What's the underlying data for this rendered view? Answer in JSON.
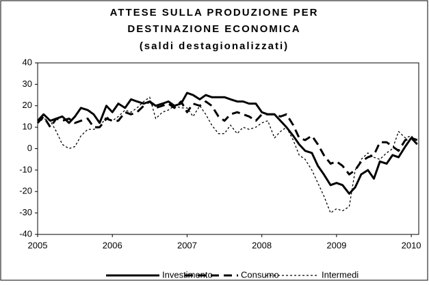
{
  "chart_data": {
    "type": "line",
    "title": [
      "ATTESE SULLA PRODUZIONE PER",
      "DESTINAZIONE ECONOMICA",
      "(saldi destagionalizzati)"
    ],
    "x": [
      2005.0,
      2005.08,
      2005.17,
      2005.25,
      2005.33,
      2005.42,
      2005.5,
      2005.58,
      2005.67,
      2005.75,
      2005.83,
      2005.92,
      2006.0,
      2006.08,
      2006.17,
      2006.25,
      2006.33,
      2006.42,
      2006.5,
      2006.58,
      2006.67,
      2006.75,
      2006.83,
      2006.92,
      2007.0,
      2007.08,
      2007.17,
      2007.25,
      2007.33,
      2007.42,
      2007.5,
      2007.58,
      2007.67,
      2007.75,
      2007.83,
      2007.92,
      2008.0,
      2008.08,
      2008.17,
      2008.25,
      2008.33,
      2008.42,
      2008.5,
      2008.58,
      2008.67,
      2008.75,
      2008.83,
      2008.92,
      2009.0,
      2009.08,
      2009.17,
      2009.25,
      2009.33,
      2009.42,
      2009.5,
      2009.58,
      2009.67,
      2009.75,
      2009.83,
      2009.92,
      2010.0,
      2010.08
    ],
    "series": [
      {
        "name": "Investimento",
        "color": "#000000",
        "line_style": "solid",
        "values": [
          13,
          16,
          13,
          14,
          15,
          12,
          15,
          19,
          18,
          16,
          12,
          20,
          17,
          21,
          19,
          23,
          22,
          21,
          22,
          20,
          21,
          22,
          20,
          21,
          26,
          25,
          23,
          25,
          24,
          24,
          24,
          23,
          22,
          22,
          21,
          21,
          17,
          16,
          16,
          13,
          10,
          6,
          2,
          -1,
          -2,
          -8,
          -12,
          -17,
          -16,
          -17,
          -21,
          -18,
          -12,
          -10,
          -14,
          -6,
          -7,
          -3,
          -4,
          1,
          5,
          4
        ]
      },
      {
        "name": "Consumo",
        "color": "#000000",
        "line_style": "dashed",
        "values": [
          12,
          15,
          10,
          14,
          13,
          14,
          12,
          13,
          14,
          10,
          10,
          14,
          13,
          13,
          17,
          16,
          17,
          20,
          22,
          19,
          20,
          21,
          19,
          22,
          17,
          21,
          20,
          22,
          20,
          15,
          13,
          16,
          17,
          16,
          15,
          13,
          16,
          16,
          16,
          15,
          16,
          11,
          5,
          4,
          6,
          2,
          -3,
          -7,
          -6,
          -8,
          -12,
          -10,
          -6,
          -4,
          -3,
          3,
          3,
          1,
          -1,
          4,
          5,
          2
        ]
      },
      {
        "name": "Intermedi",
        "color": "#000000",
        "line_style": "dotted",
        "values": [
          12,
          14,
          13,
          8,
          2,
          0,
          1,
          6,
          9,
          9,
          10,
          15,
          13,
          15,
          18,
          17,
          19,
          22,
          24,
          14,
          17,
          18,
          20,
          19,
          19,
          15,
          20,
          16,
          11,
          7,
          7,
          11,
          7,
          10,
          9,
          10,
          12,
          13,
          5,
          8,
          10,
          4,
          -3,
          -5,
          -10,
          -16,
          -22,
          -30,
          -28,
          -29,
          -27,
          -10,
          -5,
          -2,
          -4,
          -5,
          -2,
          0,
          8,
          5,
          6,
          3
        ]
      }
    ],
    "xlim": [
      2005,
      2010.1
    ],
    "xticks": [
      2005,
      2006,
      2007,
      2008,
      2009,
      2010
    ],
    "ylim": [
      -40,
      40
    ],
    "yticks": [
      -40,
      -30,
      -20,
      -10,
      0,
      10,
      20,
      30,
      40
    ],
    "legend": "bottom"
  }
}
